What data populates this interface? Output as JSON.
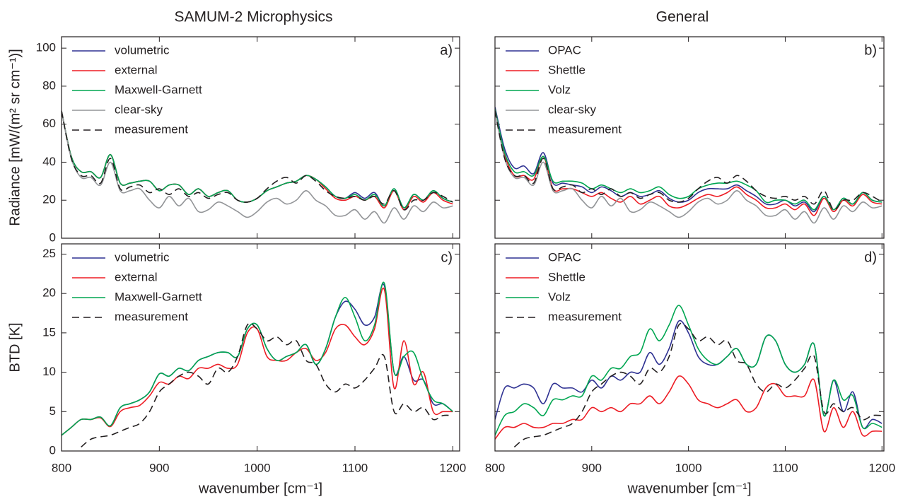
{
  "chart_data": [
    {
      "type": "line",
      "title": "SAMUM-2 Microphysics",
      "ylabel": "Radiance [mW/(m² sr cm⁻¹)]",
      "panel_label": "a)",
      "x": [
        800,
        810,
        820,
        830,
        840,
        850,
        860,
        870,
        880,
        890,
        900,
        910,
        920,
        930,
        940,
        950,
        960,
        970,
        980,
        990,
        1000,
        1010,
        1020,
        1030,
        1040,
        1050,
        1060,
        1070,
        1080,
        1090,
        1100,
        1110,
        1120,
        1130,
        1140,
        1150,
        1160,
        1170,
        1180,
        1190,
        1200
      ],
      "xlim": [
        800,
        1207
      ],
      "xticks": [
        800,
        900,
        1000,
        1100,
        1200
      ],
      "ylim": [
        0,
        106
      ],
      "yticks": [
        0,
        20,
        40,
        60,
        80,
        100
      ],
      "series": [
        {
          "name": "volumetric",
          "color": "#2e3192",
          "values": [
            67,
            43,
            35,
            35,
            32,
            44,
            29,
            29,
            30,
            30,
            25,
            28,
            28,
            23,
            26,
            22,
            24,
            25,
            20,
            19,
            21,
            25,
            27,
            29,
            30,
            33,
            31,
            27,
            22,
            21,
            24,
            21,
            24,
            17,
            26,
            16,
            23,
            20,
            25,
            21,
            19
          ]
        },
        {
          "name": "external",
          "color": "#ed1c24",
          "values": [
            67,
            43,
            35,
            35,
            32,
            44,
            29,
            29,
            30,
            30,
            25,
            28,
            28,
            23,
            26,
            22,
            24,
            25,
            20,
            19,
            21,
            25,
            27,
            29,
            30,
            33,
            31,
            26,
            21,
            20,
            22,
            20,
            22,
            16,
            25,
            15,
            22,
            19,
            24,
            20,
            18
          ]
        },
        {
          "name": "Maxwell-Garnett",
          "color": "#00a651",
          "values": [
            67,
            43,
            35,
            35,
            32,
            44,
            29,
            29,
            30,
            30,
            25,
            28,
            28,
            23,
            26,
            22,
            24,
            25,
            20,
            19,
            21,
            25,
            27,
            29,
            30,
            33,
            31,
            27,
            22,
            21,
            23,
            20,
            23,
            17,
            26,
            16,
            23,
            20,
            25,
            21,
            19
          ]
        },
        {
          "name": "clear-sky",
          "color": "#939598",
          "values": [
            67,
            42,
            32,
            32,
            28,
            40,
            25,
            25,
            26,
            20,
            16,
            22,
            17,
            21,
            14,
            15,
            19,
            17,
            14,
            11,
            14,
            19,
            21,
            18,
            20,
            25,
            20,
            17,
            12,
            12,
            15,
            10,
            14,
            8,
            16,
            10,
            17,
            14,
            19,
            16,
            17
          ]
        },
        {
          "name": "measurement",
          "color": "#231f20",
          "dash": true,
          "values": [
            67,
            42,
            33,
            33,
            29,
            42,
            26,
            27,
            28,
            24,
            26,
            23,
            26,
            22,
            24,
            21,
            23,
            24,
            20,
            19,
            21,
            26,
            30,
            32,
            29,
            33,
            30,
            25,
            22,
            21,
            22,
            20,
            22,
            18,
            25,
            15,
            20,
            20,
            24,
            22,
            19
          ]
        }
      ]
    },
    {
      "type": "line",
      "title": "General",
      "panel_label": "b)",
      "x": [
        800,
        810,
        820,
        830,
        840,
        850,
        860,
        870,
        880,
        890,
        900,
        910,
        920,
        930,
        940,
        950,
        960,
        970,
        980,
        990,
        1000,
        1010,
        1020,
        1030,
        1040,
        1050,
        1060,
        1070,
        1080,
        1090,
        1100,
        1110,
        1120,
        1130,
        1140,
        1150,
        1160,
        1170,
        1180,
        1190,
        1200
      ],
      "xlim": [
        800,
        1202
      ],
      "xticks": [
        800,
        900,
        1000,
        1100,
        1200
      ],
      "ylim": [
        0,
        106
      ],
      "yticks": [
        0,
        20,
        40,
        60,
        80,
        100
      ],
      "series": [
        {
          "name": "OPAC",
          "color": "#2e3192",
          "values": [
            69,
            47,
            37,
            38,
            34,
            45,
            29,
            29,
            28,
            27,
            24,
            27,
            25,
            22,
            24,
            22,
            23,
            25,
            21,
            19,
            20,
            24,
            26,
            26,
            26,
            28,
            25,
            22,
            18,
            18,
            20,
            17,
            19,
            14,
            22,
            15,
            21,
            18,
            24,
            20,
            19
          ]
        },
        {
          "name": "Shettle",
          "color": "#ed1c24",
          "values": [
            68,
            44,
            33,
            33,
            31,
            43,
            26,
            26,
            26,
            24,
            22,
            24,
            21,
            19,
            22,
            18,
            20,
            22,
            17,
            16,
            18,
            21,
            23,
            22,
            24,
            27,
            23,
            20,
            16,
            16,
            18,
            15,
            18,
            12,
            21,
            14,
            20,
            17,
            23,
            19,
            18
          ]
        },
        {
          "name": "Volz",
          "color": "#00a651",
          "values": [
            68,
            45,
            35,
            35,
            33,
            43,
            30,
            30,
            30,
            29,
            26,
            28,
            26,
            24,
            26,
            24,
            25,
            27,
            23,
            21,
            22,
            26,
            28,
            29,
            29,
            30,
            28,
            25,
            19,
            20,
            20,
            18,
            20,
            15,
            22,
            15,
            21,
            18,
            24,
            20,
            19
          ]
        },
        {
          "name": "clear-sky",
          "color": "#939598",
          "values": [
            67,
            42,
            32,
            32,
            28,
            40,
            25,
            25,
            26,
            20,
            16,
            22,
            17,
            21,
            14,
            15,
            19,
            17,
            14,
            11,
            14,
            19,
            21,
            18,
            20,
            25,
            20,
            17,
            12,
            12,
            15,
            10,
            14,
            8,
            16,
            10,
            17,
            14,
            19,
            16,
            17
          ]
        },
        {
          "name": "measurement",
          "color": "#231f20",
          "dash": true,
          "values": [
            67,
            42,
            33,
            33,
            29,
            42,
            26,
            27,
            28,
            24,
            26,
            23,
            26,
            22,
            24,
            21,
            23,
            24,
            20,
            19,
            21,
            26,
            30,
            32,
            29,
            33,
            30,
            25,
            22,
            21,
            22,
            20,
            22,
            18,
            25,
            15,
            20,
            20,
            24,
            22,
            19
          ]
        }
      ]
    },
    {
      "type": "line",
      "ylabel": "BTD [K]",
      "xlabel": "wavenumber [cm⁻¹]",
      "panel_label": "c)",
      "x": [
        800,
        810,
        820,
        830,
        840,
        850,
        860,
        870,
        880,
        890,
        900,
        910,
        920,
        930,
        940,
        950,
        960,
        970,
        980,
        990,
        1000,
        1010,
        1020,
        1030,
        1040,
        1050,
        1060,
        1070,
        1080,
        1090,
        1100,
        1110,
        1120,
        1130,
        1140,
        1150,
        1160,
        1170,
        1180,
        1190,
        1200
      ],
      "xlim": [
        800,
        1207
      ],
      "xticks": [
        800,
        900,
        1000,
        1100,
        1200
      ],
      "ylim": [
        0,
        26.3
      ],
      "yticks": [
        0,
        5,
        10,
        15,
        20,
        25
      ],
      "series": [
        {
          "name": "volumetric",
          "color": "#2e3192",
          "values": [
            2,
            3,
            4,
            4,
            4.3,
            3.2,
            5.5,
            6,
            6.5,
            7.5,
            9.8,
            9.5,
            10.5,
            10.2,
            11.5,
            12,
            12.5,
            12.5,
            12,
            15.5,
            16,
            13,
            11.5,
            12,
            12.5,
            13.5,
            11,
            13,
            17,
            19,
            18,
            16,
            17,
            21,
            10,
            12,
            9,
            9,
            6,
            6,
            5
          ]
        },
        {
          "name": "external",
          "color": "#ed1c24",
          "values": [
            2,
            3,
            4,
            4,
            4.2,
            3.1,
            5,
            5.5,
            5.8,
            7,
            8.7,
            8.5,
            9.5,
            9.2,
            10.5,
            10.5,
            11,
            10.5,
            11,
            15,
            15.5,
            12,
            11.5,
            11.5,
            12.5,
            13,
            11.5,
            12.5,
            15.5,
            16,
            14.5,
            13.5,
            15.5,
            20.5,
            8,
            14,
            8.5,
            10,
            5,
            5,
            5
          ]
        },
        {
          "name": "Maxwell-Garnett",
          "color": "#00a651",
          "values": [
            2,
            3,
            4,
            4,
            4.3,
            3.2,
            5.5,
            6,
            6.5,
            7.5,
            9.8,
            9.5,
            10.5,
            10.2,
            11.5,
            12,
            12.5,
            12.5,
            12,
            15.5,
            16,
            13,
            11.5,
            12,
            12.5,
            13.5,
            11,
            13,
            17,
            19.5,
            17,
            14,
            16,
            21.3,
            10,
            12,
            12.5,
            9,
            6.5,
            6,
            5
          ]
        },
        {
          "name": "measurement",
          "color": "#231f20",
          "dash": true,
          "values": [
            null,
            null,
            0.5,
            1.5,
            1.8,
            2,
            2.5,
            3,
            3.5,
            5,
            7.5,
            8.5,
            9.5,
            10,
            9.5,
            8.5,
            10.5,
            10,
            12,
            16,
            15.5,
            14,
            14.5,
            13.5,
            14,
            11.5,
            11,
            8.5,
            7.5,
            8.5,
            8,
            9,
            10.5,
            12,
            5,
            6,
            5,
            5.5,
            4,
            4.5,
            4.5
          ]
        }
      ]
    },
    {
      "type": "line",
      "xlabel": "wavenumber [cm⁻¹]",
      "panel_label": "d)",
      "x": [
        800,
        810,
        820,
        830,
        840,
        850,
        860,
        870,
        880,
        890,
        900,
        910,
        920,
        930,
        940,
        950,
        960,
        970,
        980,
        990,
        1000,
        1010,
        1020,
        1030,
        1040,
        1050,
        1060,
        1070,
        1080,
        1090,
        1100,
        1110,
        1120,
        1130,
        1140,
        1150,
        1160,
        1170,
        1180,
        1190,
        1200
      ],
      "xlim": [
        800,
        1202
      ],
      "xticks": [
        800,
        900,
        1000,
        1100,
        1200
      ],
      "ylim": [
        0,
        26.3
      ],
      "yticks": [
        0,
        5,
        10,
        15,
        20,
        25
      ],
      "series": [
        {
          "name": "OPAC",
          "color": "#2e3192",
          "values": [
            4,
            8,
            8,
            8.5,
            8,
            6,
            8.5,
            8,
            8,
            7.5,
            9,
            8,
            9.5,
            9,
            10,
            10,
            12.5,
            11,
            13,
            16.5,
            15,
            12,
            11,
            11,
            12,
            13,
            11,
            11,
            14.5,
            14,
            11,
            10,
            11,
            13.5,
            4.5,
            9,
            5,
            7.5,
            3,
            4,
            3.5
          ]
        },
        {
          "name": "Shettle",
          "color": "#ed1c24",
          "values": [
            1.5,
            3,
            3,
            3.5,
            3,
            3,
            3.5,
            3.5,
            4,
            4,
            5.5,
            5,
            5.5,
            5,
            6,
            6,
            7,
            6,
            7.5,
            9.5,
            8.5,
            6.5,
            6,
            5.5,
            6,
            6.5,
            5,
            5.5,
            8,
            8.5,
            7,
            7,
            7,
            9,
            2.5,
            5.5,
            3,
            5,
            2,
            2.5,
            2.5
          ]
        },
        {
          "name": "Volz",
          "color": "#00a651",
          "values": [
            2,
            4.5,
            5,
            6,
            5.5,
            4.5,
            6.5,
            6.5,
            7,
            7,
            9.5,
            9,
            10.5,
            10.5,
            12,
            12.5,
            15.5,
            14,
            16,
            18.5,
            16,
            13,
            11.5,
            11,
            12,
            13,
            11,
            11,
            14.5,
            14,
            11,
            10,
            11,
            13.5,
            4.5,
            9,
            6.5,
            7,
            3,
            3.5,
            3
          ]
        },
        {
          "name": "measurement",
          "color": "#231f20",
          "dash": true,
          "values": [
            null,
            null,
            0.5,
            1.5,
            1.8,
            2,
            2.5,
            3,
            3.5,
            5,
            7.5,
            8.5,
            9.5,
            10,
            9.5,
            8.5,
            10.5,
            10,
            12,
            16,
            15.5,
            14,
            14.5,
            13.5,
            14,
            11.5,
            11,
            8.5,
            7.5,
            8.5,
            8,
            9,
            10.5,
            12,
            5,
            6,
            5,
            5.5,
            4,
            4.5,
            4.5
          ]
        }
      ]
    }
  ]
}
